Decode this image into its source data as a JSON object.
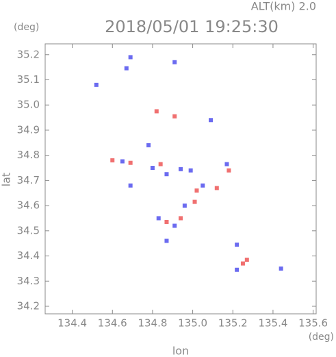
{
  "chart_data": {
    "type": "scatter",
    "title": "2018/05/01 19:25:30",
    "subtitle": "ALT(km) 2.0",
    "x_label": "lon",
    "y_label": "lat",
    "x_unit": "(deg)",
    "y_unit": "(deg)",
    "xlim": [
      134.265,
      135.615
    ],
    "ylim": [
      34.17,
      35.243
    ],
    "xticks": [
      134.4,
      134.6,
      134.8,
      {
        "value": 135,
        "label": "135.0"
      },
      135.2,
      135.4,
      135.6
    ],
    "yticks": [
      34.2,
      34.3,
      34.4,
      34.5,
      34.6,
      34.7,
      34.8,
      34.9,
      {
        "value": 35,
        "label": "35.0"
      },
      35.1,
      35.2
    ],
    "series": [
      {
        "color": "#6b6bf0",
        "x": [
          134.69,
          134.67,
          134.52,
          134.91,
          135.09,
          134.65,
          134.78,
          134.8,
          134.87,
          134.94,
          134.99,
          135.05,
          134.96,
          134.69,
          135.17,
          134.83,
          134.91,
          134.87,
          135.22,
          135.22,
          135.44
        ],
        "values": [
          35.19,
          35.146,
          35.08,
          35.17,
          34.94,
          34.776,
          34.84,
          34.75,
          34.725,
          34.745,
          34.74,
          34.68,
          34.6,
          34.68,
          34.765,
          34.55,
          34.52,
          34.46,
          34.445,
          34.345,
          34.35
        ]
      },
      {
        "color": "#f07070",
        "x": [
          134.82,
          134.91,
          134.6,
          134.69,
          134.84,
          135.02,
          135.01,
          135.18,
          135.12,
          134.87,
          134.94,
          135.25,
          135.27
        ],
        "values": [
          34.975,
          34.955,
          34.78,
          34.77,
          34.765,
          34.66,
          34.615,
          34.74,
          34.67,
          34.535,
          34.55,
          34.37,
          34.385
        ]
      }
    ]
  }
}
